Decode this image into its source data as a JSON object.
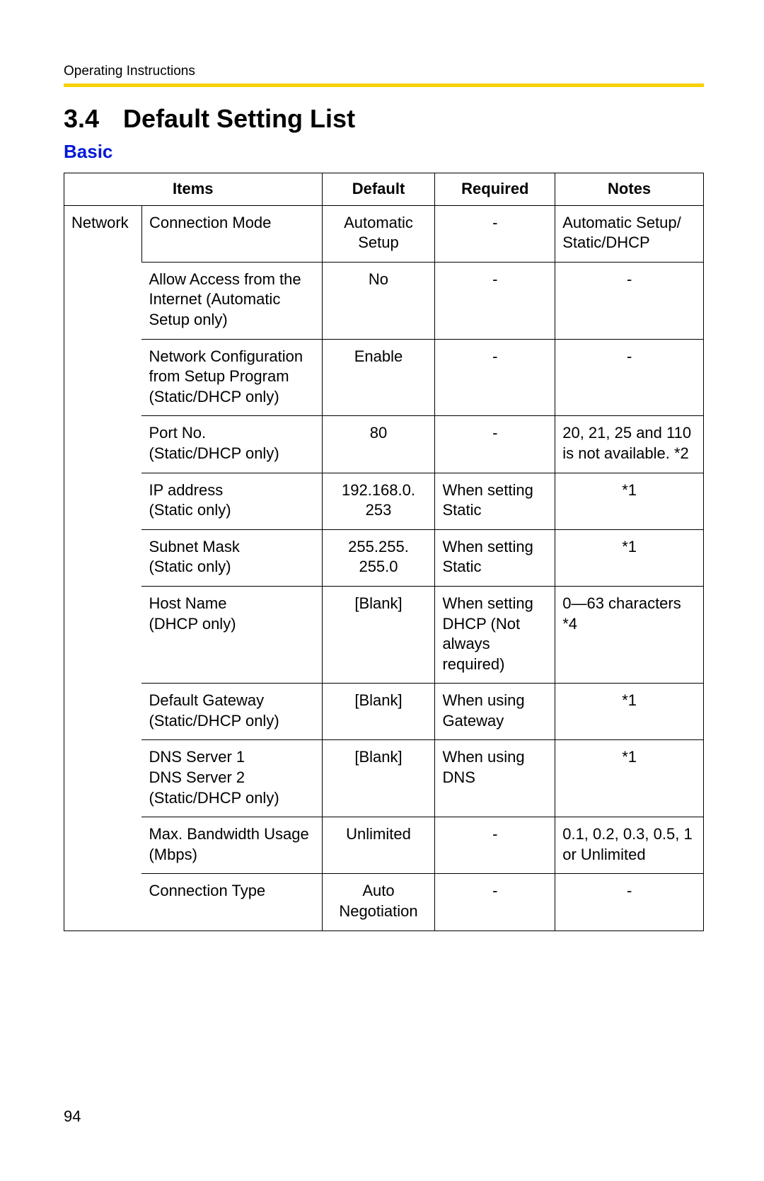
{
  "running_header": "Operating Instructions",
  "section_number": "3.4",
  "section_title": "Default Setting List",
  "subsection": "Basic",
  "page_number": "94",
  "colors": {
    "rule": "#f7d100",
    "subsection": "#0018d8",
    "text": "#000000",
    "background": "#ffffff",
    "border": "#000000"
  },
  "table": {
    "headers": {
      "items": "Items",
      "default": "Default",
      "required": "Required",
      "notes": "Notes"
    },
    "group_label": "Network",
    "rows": [
      {
        "item": "Connection Mode",
        "default": "Automatic Setup",
        "required": "-",
        "required_align": "center",
        "notes": "Automatic Setup/\nStatic/DHCP",
        "notes_align": "left"
      },
      {
        "item": "Allow Access from the Internet (Automatic Setup only)",
        "default": "No",
        "required": "-",
        "required_align": "center",
        "notes": "-",
        "notes_align": "center"
      },
      {
        "item": "Network Configuration from Setup Program (Static/DHCP only)",
        "default": "Enable",
        "required": "-",
        "required_align": "center",
        "notes": "-",
        "notes_align": "center"
      },
      {
        "item": "Port No.\n(Static/DHCP only)",
        "default": "80",
        "required": "-",
        "required_align": "center",
        "notes": "20, 21, 25 and 110 is not available. *2",
        "notes_align": "left"
      },
      {
        "item": "IP address\n(Static only)",
        "default": "192.168.0.\n253",
        "required": "When setting Static",
        "required_align": "left",
        "notes": "*1",
        "notes_align": "center"
      },
      {
        "item": "Subnet Mask\n(Static only)",
        "default": "255.255.\n255.0",
        "required": "When setting Static",
        "required_align": "left",
        "notes": "*1",
        "notes_align": "center"
      },
      {
        "item": "Host Name\n(DHCP only)",
        "default": "[Blank]",
        "required": "When setting DHCP (Not always required)",
        "required_align": "left",
        "notes": "0—63 characters *4",
        "notes_align": "left"
      },
      {
        "item": "Default Gateway (Static/DHCP only)",
        "default": "[Blank]",
        "required": "When using Gateway",
        "required_align": "left",
        "notes": "*1",
        "notes_align": "center"
      },
      {
        "item": "DNS Server 1\nDNS Server 2\n(Static/DHCP only)",
        "default": "[Blank]",
        "required": "When using DNS",
        "required_align": "left",
        "notes": "*1",
        "notes_align": "center"
      },
      {
        "item": "Max. Bandwidth Usage (Mbps)",
        "default": "Unlimited",
        "required": "-",
        "required_align": "center",
        "notes": "0.1, 0.2, 0.3, 0.5, 1 or Unlimited",
        "notes_align": "left"
      },
      {
        "item": "Connection Type",
        "default": "Auto Negotiation",
        "required": "-",
        "required_align": "center",
        "notes": "-",
        "notes_align": "center"
      }
    ]
  }
}
